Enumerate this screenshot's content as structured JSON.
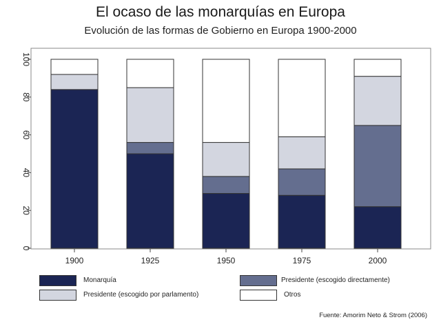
{
  "title": "El ocaso de las monarquías en Europa",
  "subtitle": "Evolución de las formas de Gobierno en Europa 1900-2000",
  "source": "Fuente: Amorim Neto & Strom (2006)",
  "colors": {
    "monarquia": "#1b2554",
    "presidente_directo": "#646e8f",
    "presidente_parlamento": "#d3d6e0",
    "otros": "#ffffff"
  },
  "chart_data": {
    "type": "bar",
    "stacked": true,
    "categories": [
      "1900",
      "1925",
      "1950",
      "1975",
      "2000"
    ],
    "series": [
      {
        "name": "Monarquía",
        "values": [
          84,
          50,
          29,
          28,
          22
        ]
      },
      {
        "name": "Presidente (escogido directamente)",
        "values": [
          0,
          6,
          9,
          14,
          43
        ]
      },
      {
        "name": "Presidente (escogido por parlamento)",
        "values": [
          8,
          29,
          18,
          17,
          26
        ]
      },
      {
        "name": "Otros",
        "values": [
          8,
          15,
          44,
          41,
          9
        ]
      }
    ],
    "yticks": [
      "0",
      "20",
      "40",
      "60",
      "80",
      "100"
    ],
    "ylim": [
      0,
      100
    ],
    "legend_position": "bottom"
  }
}
